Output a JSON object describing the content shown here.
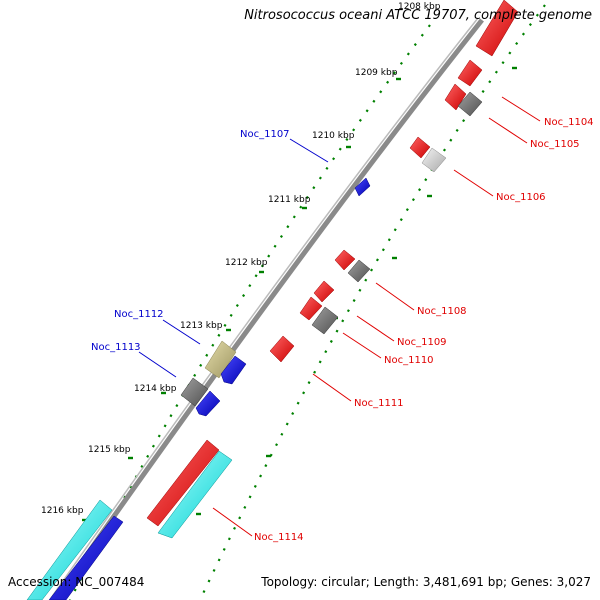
{
  "title": "Nitrosococcus oceani ATCC 19707, complete genome",
  "accession": {
    "label": "Accession:",
    "value": "NC_007484"
  },
  "topology": {
    "label": "Topology:",
    "value": "circular",
    "length_label": "Length:",
    "length": "3,481,691 bp",
    "genes_label": "Genes:",
    "genes": "3,027"
  },
  "ticks": [
    "1208 kbp",
    "1209 kbp",
    "1210 kbp",
    "1211 kbp",
    "1212 kbp",
    "1213 kbp",
    "1214 kbp",
    "1215 kbp",
    "1216 kbp"
  ],
  "genes": [
    {
      "name": "Noc_1104",
      "color": "#e00000"
    },
    {
      "name": "Noc_1105",
      "color": "#e00000"
    },
    {
      "name": "Noc_1106",
      "color": "#e00000"
    },
    {
      "name": "Noc_1107",
      "color": "#0000cc"
    },
    {
      "name": "Noc_1108",
      "color": "#e00000"
    },
    {
      "name": "Noc_1109",
      "color": "#e00000"
    },
    {
      "name": "Noc_1110",
      "color": "#e00000"
    },
    {
      "name": "Noc_1111",
      "color": "#e00000"
    },
    {
      "name": "Noc_1112",
      "color": "#0000cc"
    },
    {
      "name": "Noc_1113",
      "color": "#0000cc"
    },
    {
      "name": "Noc_1114",
      "color": "#e00000"
    }
  ],
  "colors": {
    "cds_forward": "#ff0000",
    "cds_reverse": "#0000ff",
    "rna": "#00ffff",
    "gray": "#777777",
    "olive": "#c8c080",
    "backbone": "#777777",
    "gc_dots": "#008000"
  }
}
